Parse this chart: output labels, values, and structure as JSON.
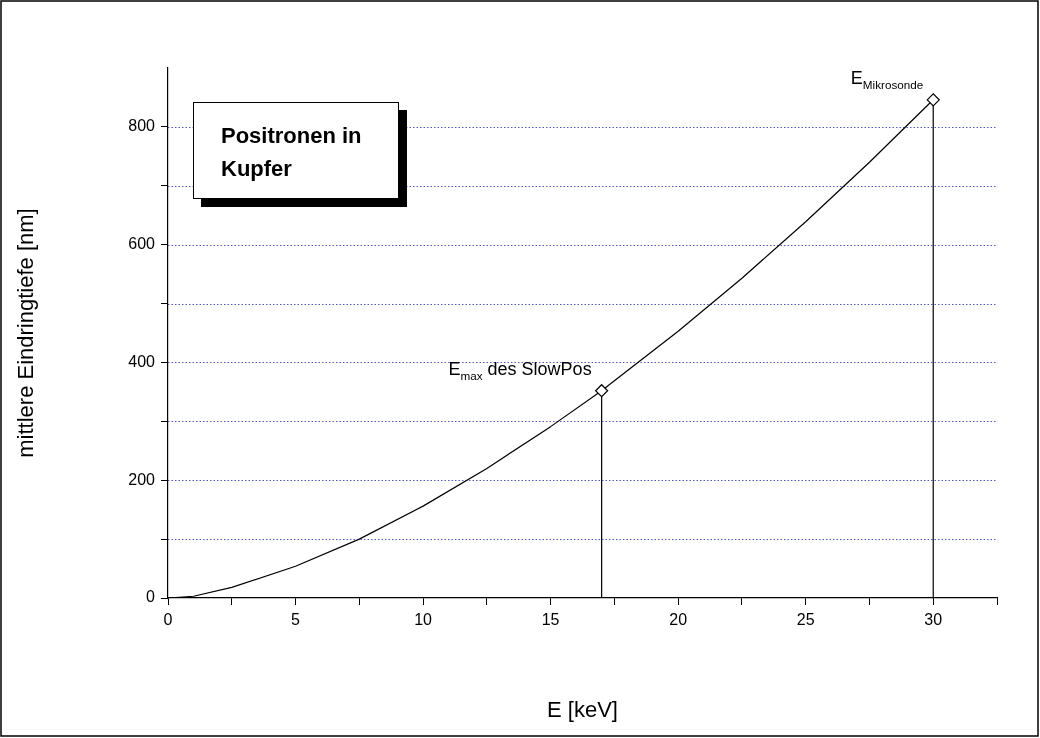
{
  "chart_data": {
    "type": "line",
    "title": "Positronen in Kupfer",
    "xlabel": "E [keV]",
    "ylabel": "mittlere Eindringtiefe [nm]",
    "series": [
      {
        "type": "line",
        "color": "#000000",
        "marker": "none",
        "x": [
          0,
          1,
          2.5,
          5,
          7.5,
          10,
          12.5,
          15,
          17,
          17.5,
          20,
          22.5,
          25,
          27.5,
          30
        ],
        "values": [
          0,
          3,
          18,
          54,
          100,
          156,
          220,
          291,
          352,
          369,
          453,
          543,
          639,
          740,
          846
        ]
      },
      {
        "type": "lollipop",
        "color": "#000000",
        "marker": "diamond",
        "x": [
          17,
          30
        ],
        "values": [
          352,
          846
        ]
      }
    ],
    "annotations": [
      {
        "text": "E$_{max}$ des SlowPos",
        "x": 17,
        "y": 352
      },
      {
        "text": "E$_{Mikrosonde}$",
        "x": 30,
        "y": 846
      }
    ],
    "xlim": [
      0,
      32.5
    ],
    "ylim": [
      0,
      900
    ],
    "xticks": [
      0,
      {
        "value": 2.5,
        "label": null
      },
      5,
      {
        "value": 7.5,
        "label": null
      },
      10,
      {
        "value": 12.5,
        "label": null
      },
      15,
      {
        "value": 17.5,
        "label": null
      },
      20,
      {
        "value": 22.5,
        "label": null
      },
      25,
      {
        "value": 27.5,
        "label": null
      },
      30,
      {
        "value": 32.5,
        "label": null
      }
    ],
    "yticks": [
      0,
      {
        "value": 100,
        "label": null
      },
      200,
      {
        "value": 300,
        "label": null
      },
      400,
      {
        "value": 500,
        "label": null
      },
      600,
      {
        "value": 700,
        "label": null
      },
      800
    ],
    "grid": "y",
    "legend": false
  }
}
